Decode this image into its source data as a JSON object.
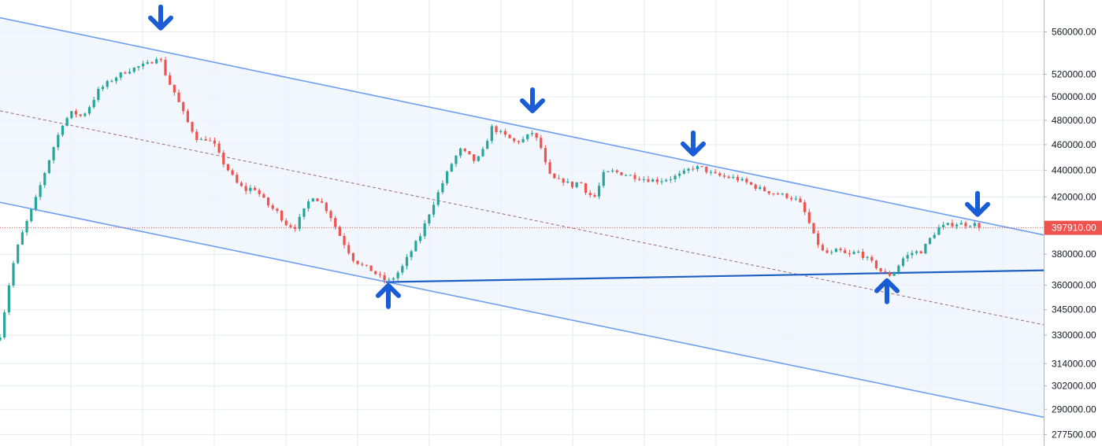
{
  "chart_data": {
    "type": "candlestick",
    "title": "",
    "xlabel": "",
    "ylabel": "",
    "y_scale": "log",
    "ylim": [
      272000,
      592000
    ],
    "grid": true,
    "y_ticks": [
      560000,
      520000,
      500000,
      480000,
      460000,
      440000,
      420000,
      380000,
      360000,
      345000,
      330000,
      314000,
      302000,
      290000,
      277500
    ],
    "y_tick_labels": [
      "560000.00",
      "520000.00",
      "500000.00",
      "480000.00",
      "460000.00",
      "440000.00",
      "420000.00",
      "380000.00",
      "360000.00",
      "345000.00",
      "330000.00",
      "314000.00",
      "302000.00",
      "290000.00",
      "277500.00"
    ],
    "last_price": 397910,
    "last_price_label": "397910.00",
    "colors": {
      "up": "#26a69a",
      "down": "#ef5350",
      "channel_line": "#6e9ef0",
      "channel_fill": "#eef4fc",
      "support_line": "#1f5fc4",
      "median_line": "#9c6b8a",
      "arrow": "#1a5bd6",
      "grid": "#e6ebf1",
      "price_line": "#ef5350"
    },
    "candle_count": 220,
    "close_path": [
      [
        0,
        330000
      ],
      [
        6,
        345000
      ],
      [
        14,
        368000
      ],
      [
        24,
        388000
      ],
      [
        34,
        402000
      ],
      [
        44,
        416000
      ],
      [
        56,
        437000
      ],
      [
        68,
        458000
      ],
      [
        80,
        478000
      ],
      [
        92,
        487000
      ],
      [
        104,
        483000
      ],
      [
        116,
        494000
      ],
      [
        124,
        505000
      ],
      [
        136,
        512000
      ],
      [
        148,
        518000
      ],
      [
        160,
        523000
      ],
      [
        176,
        527000
      ],
      [
        190,
        530000
      ],
      [
        200,
        537000
      ],
      [
        204,
        533000
      ],
      [
        212,
        516000
      ],
      [
        222,
        503000
      ],
      [
        230,
        490000
      ],
      [
        240,
        476000
      ],
      [
        252,
        463000
      ],
      [
        262,
        465000
      ],
      [
        272,
        460000
      ],
      [
        282,
        447000
      ],
      [
        292,
        438000
      ],
      [
        302,
        429000
      ],
      [
        312,
        425000
      ],
      [
        322,
        427000
      ],
      [
        332,
        420000
      ],
      [
        342,
        413000
      ],
      [
        352,
        409000
      ],
      [
        362,
        401000
      ],
      [
        374,
        398000
      ],
      [
        384,
        408000
      ],
      [
        396,
        421000
      ],
      [
        408,
        416000
      ],
      [
        418,
        408000
      ],
      [
        428,
        396000
      ],
      [
        438,
        386000
      ],
      [
        448,
        377000
      ],
      [
        458,
        373000
      ],
      [
        470,
        370000
      ],
      [
        480,
        366000
      ],
      [
        492,
        362000
      ],
      [
        500,
        365000
      ],
      [
        510,
        371000
      ],
      [
        522,
        382000
      ],
      [
        534,
        393000
      ],
      [
        544,
        407000
      ],
      [
        554,
        420000
      ],
      [
        564,
        433000
      ],
      [
        574,
        446000
      ],
      [
        584,
        456000
      ],
      [
        594,
        452000
      ],
      [
        604,
        446000
      ],
      [
        614,
        456000
      ],
      [
        624,
        474000
      ],
      [
        634,
        470000
      ],
      [
        644,
        466000
      ],
      [
        654,
        462000
      ],
      [
        664,
        464000
      ],
      [
        676,
        470000
      ],
      [
        686,
        459000
      ],
      [
        696,
        437000
      ],
      [
        706,
        432000
      ],
      [
        716,
        432000
      ],
      [
        726,
        428000
      ],
      [
        736,
        432000
      ],
      [
        746,
        422000
      ],
      [
        756,
        420000
      ],
      [
        766,
        437000
      ],
      [
        778,
        439000
      ],
      [
        792,
        437000
      ],
      [
        806,
        435000
      ],
      [
        820,
        433000
      ],
      [
        836,
        432000
      ],
      [
        852,
        434000
      ],
      [
        866,
        437000
      ],
      [
        878,
        442000
      ],
      [
        890,
        442000
      ],
      [
        904,
        437000
      ],
      [
        918,
        435000
      ],
      [
        932,
        434000
      ],
      [
        946,
        431000
      ],
      [
        960,
        427000
      ],
      [
        974,
        424000
      ],
      [
        988,
        422000
      ],
      [
        1002,
        420000
      ],
      [
        1014,
        417000
      ],
      [
        1024,
        406000
      ],
      [
        1034,
        391000
      ],
      [
        1044,
        382000
      ],
      [
        1054,
        380000
      ],
      [
        1064,
        383000
      ],
      [
        1076,
        379000
      ],
      [
        1088,
        382000
      ],
      [
        1098,
        378000
      ],
      [
        1108,
        374000
      ],
      [
        1118,
        369000
      ],
      [
        1128,
        366000
      ],
      [
        1136,
        369000
      ],
      [
        1146,
        377000
      ],
      [
        1158,
        381000
      ],
      [
        1170,
        382000
      ],
      [
        1180,
        390000
      ],
      [
        1192,
        398000
      ],
      [
        1204,
        400000
      ],
      [
        1216,
        401000
      ],
      [
        1228,
        400000
      ],
      [
        1236,
        401000
      ],
      [
        1243,
        397910
      ]
    ],
    "channel": {
      "upper": [
        [
          0,
          574000
        ],
        [
          1325,
          393000
        ]
      ],
      "lower": [
        [
          0,
          416000
        ],
        [
          1325,
          286000
        ]
      ],
      "median": [
        [
          0,
          488000
        ],
        [
          1325,
          336000
        ]
      ]
    },
    "support_line": [
      [
        490,
        362000
      ],
      [
        1380,
        370000
      ]
    ],
    "arrows": [
      {
        "direction": "down",
        "x": 204,
        "price": 573000
      },
      {
        "direction": "down",
        "x": 676,
        "price": 496000
      },
      {
        "direction": "down",
        "x": 880,
        "price": 460000
      },
      {
        "direction": "down",
        "x": 1241,
        "price": 414000
      },
      {
        "direction": "up",
        "x": 493,
        "price": 354000
      },
      {
        "direction": "up",
        "x": 1126,
        "price": 357000
      }
    ]
  }
}
